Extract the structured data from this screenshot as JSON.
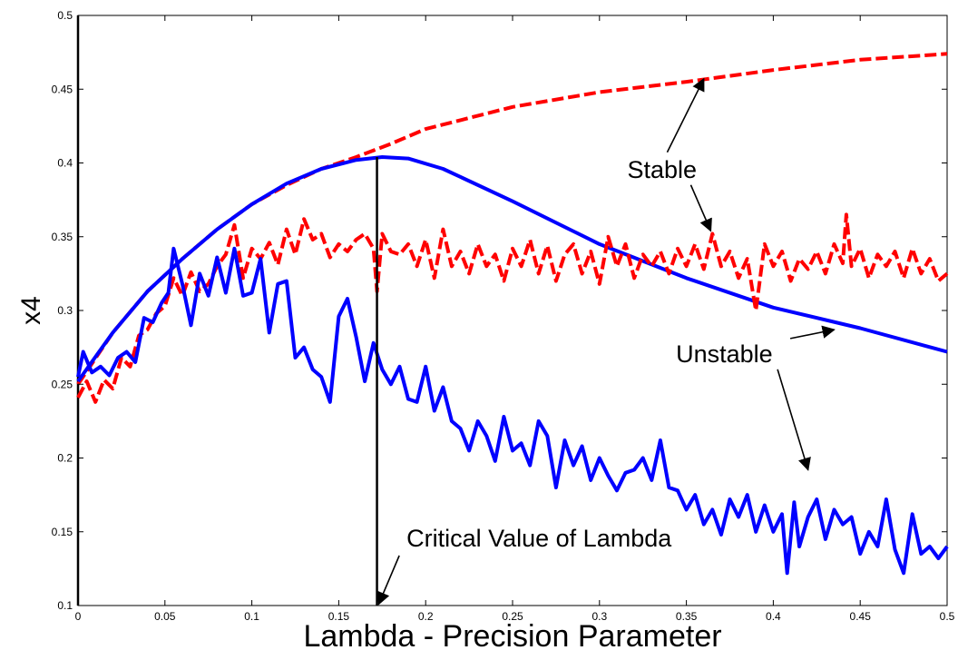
{
  "chart_data": {
    "type": "line",
    "title": "",
    "xlabel": "Lambda - Precision Parameter",
    "ylabel": "x4",
    "xlim": [
      0,
      0.5
    ],
    "ylim": [
      0.1,
      0.5
    ],
    "grid": false,
    "x_ticks": [
      0,
      0.05,
      0.1,
      0.15,
      0.2,
      0.25,
      0.3,
      0.35,
      0.4,
      0.45,
      0.5
    ],
    "x_tick_labels": [
      "0",
      "0.05",
      "0.1",
      "0.15",
      "0.2",
      "0.25",
      "0.3",
      "0.35",
      "0.4",
      "0.45",
      "0.5"
    ],
    "y_ticks": [
      0.1,
      0.15,
      0.2,
      0.25,
      0.3,
      0.35,
      0.4,
      0.45,
      0.5
    ],
    "y_tick_labels": [
      "0.1",
      "0.15",
      "0.2",
      "0.25",
      "0.3",
      "0.35",
      "0.4",
      "0.45",
      "0.5"
    ],
    "series": [
      {
        "color": "#ff0000",
        "style": "dashed",
        "points": [
          [
            0,
            0.25
          ],
          [
            0.02,
            0.285
          ],
          [
            0.04,
            0.313
          ],
          [
            0.06,
            0.335
          ],
          [
            0.08,
            0.355
          ],
          [
            0.1,
            0.372
          ],
          [
            0.12,
            0.385
          ],
          [
            0.14,
            0.396
          ],
          [
            0.16,
            0.404
          ],
          [
            0.18,
            0.413
          ],
          [
            0.2,
            0.423
          ],
          [
            0.25,
            0.438
          ],
          [
            0.3,
            0.448
          ],
          [
            0.35,
            0.455
          ],
          [
            0.4,
            0.463
          ],
          [
            0.45,
            0.47
          ],
          [
            0.5,
            0.474
          ]
        ]
      },
      {
        "color": "#0000ff",
        "style": "solid",
        "points": [
          [
            0,
            0.252
          ],
          [
            0.02,
            0.285
          ],
          [
            0.04,
            0.313
          ],
          [
            0.06,
            0.335
          ],
          [
            0.08,
            0.355
          ],
          [
            0.1,
            0.372
          ],
          [
            0.12,
            0.386
          ],
          [
            0.14,
            0.396
          ],
          [
            0.16,
            0.402
          ],
          [
            0.175,
            0.404
          ],
          [
            0.19,
            0.403
          ],
          [
            0.21,
            0.396
          ],
          [
            0.25,
            0.374
          ],
          [
            0.3,
            0.345
          ],
          [
            0.35,
            0.322
          ],
          [
            0.4,
            0.302
          ],
          [
            0.45,
            0.288
          ],
          [
            0.5,
            0.272
          ]
        ]
      },
      {
        "color": "#ff0000",
        "style": "dashed",
        "points": [
          [
            0,
            0.241
          ],
          [
            0.005,
            0.252
          ],
          [
            0.01,
            0.238
          ],
          [
            0.015,
            0.253
          ],
          [
            0.02,
            0.247
          ],
          [
            0.025,
            0.268
          ],
          [
            0.03,
            0.262
          ],
          [
            0.035,
            0.283
          ],
          [
            0.04,
            0.287
          ],
          [
            0.045,
            0.298
          ],
          [
            0.05,
            0.303
          ],
          [
            0.055,
            0.322
          ],
          [
            0.06,
            0.31
          ],
          [
            0.065,
            0.326
          ],
          [
            0.07,
            0.313
          ],
          [
            0.075,
            0.318
          ],
          [
            0.08,
            0.33
          ],
          [
            0.085,
            0.338
          ],
          [
            0.09,
            0.358
          ],
          [
            0.095,
            0.322
          ],
          [
            0.1,
            0.342
          ],
          [
            0.105,
            0.335
          ],
          [
            0.11,
            0.346
          ],
          [
            0.115,
            0.331
          ],
          [
            0.12,
            0.355
          ],
          [
            0.125,
            0.338
          ],
          [
            0.13,
            0.362
          ],
          [
            0.135,
            0.348
          ],
          [
            0.14,
            0.352
          ],
          [
            0.145,
            0.336
          ],
          [
            0.15,
            0.345
          ],
          [
            0.155,
            0.34
          ],
          [
            0.16,
            0.348
          ],
          [
            0.165,
            0.352
          ],
          [
            0.17,
            0.342
          ],
          [
            0.172,
            0.313
          ],
          [
            0.175,
            0.352
          ],
          [
            0.18,
            0.34
          ],
          [
            0.185,
            0.338
          ],
          [
            0.19,
            0.345
          ],
          [
            0.195,
            0.33
          ],
          [
            0.2,
            0.348
          ],
          [
            0.205,
            0.322
          ],
          [
            0.21,
            0.355
          ],
          [
            0.215,
            0.33
          ],
          [
            0.22,
            0.34
          ],
          [
            0.225,
            0.325
          ],
          [
            0.23,
            0.345
          ],
          [
            0.235,
            0.33
          ],
          [
            0.24,
            0.338
          ],
          [
            0.245,
            0.32
          ],
          [
            0.25,
            0.342
          ],
          [
            0.255,
            0.33
          ],
          [
            0.26,
            0.348
          ],
          [
            0.265,
            0.325
          ],
          [
            0.27,
            0.344
          ],
          [
            0.275,
            0.32
          ],
          [
            0.28,
            0.338
          ],
          [
            0.285,
            0.345
          ],
          [
            0.29,
            0.325
          ],
          [
            0.295,
            0.34
          ],
          [
            0.3,
            0.318
          ],
          [
            0.305,
            0.35
          ],
          [
            0.31,
            0.33
          ],
          [
            0.315,
            0.345
          ],
          [
            0.32,
            0.322
          ],
          [
            0.325,
            0.338
          ],
          [
            0.33,
            0.33
          ],
          [
            0.335,
            0.34
          ],
          [
            0.34,
            0.325
          ],
          [
            0.345,
            0.342
          ],
          [
            0.35,
            0.33
          ],
          [
            0.355,
            0.345
          ],
          [
            0.36,
            0.328
          ],
          [
            0.365,
            0.352
          ],
          [
            0.37,
            0.33
          ],
          [
            0.375,
            0.34
          ],
          [
            0.38,
            0.322
          ],
          [
            0.385,
            0.335
          ],
          [
            0.39,
            0.3
          ],
          [
            0.395,
            0.345
          ],
          [
            0.4,
            0.33
          ],
          [
            0.405,
            0.34
          ],
          [
            0.41,
            0.32
          ],
          [
            0.415,
            0.335
          ],
          [
            0.42,
            0.328
          ],
          [
            0.425,
            0.34
          ],
          [
            0.43,
            0.325
          ],
          [
            0.435,
            0.345
          ],
          [
            0.44,
            0.332
          ],
          [
            0.442,
            0.365
          ],
          [
            0.445,
            0.33
          ],
          [
            0.45,
            0.342
          ],
          [
            0.455,
            0.322
          ],
          [
            0.46,
            0.338
          ],
          [
            0.465,
            0.33
          ],
          [
            0.47,
            0.34
          ],
          [
            0.475,
            0.322
          ],
          [
            0.48,
            0.342
          ],
          [
            0.485,
            0.325
          ],
          [
            0.49,
            0.335
          ],
          [
            0.495,
            0.32
          ],
          [
            0.5,
            0.325
          ]
        ]
      },
      {
        "color": "#0000ff",
        "style": "solid",
        "points": [
          [
            0,
            0.255
          ],
          [
            0.003,
            0.272
          ],
          [
            0.008,
            0.258
          ],
          [
            0.013,
            0.262
          ],
          [
            0.018,
            0.256
          ],
          [
            0.023,
            0.268
          ],
          [
            0.028,
            0.272
          ],
          [
            0.033,
            0.265
          ],
          [
            0.038,
            0.295
          ],
          [
            0.043,
            0.292
          ],
          [
            0.048,
            0.305
          ],
          [
            0.052,
            0.312
          ],
          [
            0.055,
            0.342
          ],
          [
            0.06,
            0.318
          ],
          [
            0.065,
            0.29
          ],
          [
            0.07,
            0.325
          ],
          [
            0.075,
            0.31
          ],
          [
            0.08,
            0.336
          ],
          [
            0.085,
            0.312
          ],
          [
            0.09,
            0.342
          ],
          [
            0.095,
            0.31
          ],
          [
            0.1,
            0.312
          ],
          [
            0.105,
            0.335
          ],
          [
            0.11,
            0.285
          ],
          [
            0.115,
            0.318
          ],
          [
            0.12,
            0.32
          ],
          [
            0.125,
            0.268
          ],
          [
            0.13,
            0.275
          ],
          [
            0.135,
            0.26
          ],
          [
            0.14,
            0.255
          ],
          [
            0.145,
            0.238
          ],
          [
            0.15,
            0.296
          ],
          [
            0.155,
            0.308
          ],
          [
            0.16,
            0.282
          ],
          [
            0.165,
            0.252
          ],
          [
            0.17,
            0.278
          ],
          [
            0.175,
            0.26
          ],
          [
            0.18,
            0.25
          ],
          [
            0.185,
            0.262
          ],
          [
            0.19,
            0.24
          ],
          [
            0.195,
            0.238
          ],
          [
            0.2,
            0.262
          ],
          [
            0.205,
            0.232
          ],
          [
            0.21,
            0.248
          ],
          [
            0.215,
            0.225
          ],
          [
            0.22,
            0.22
          ],
          [
            0.225,
            0.205
          ],
          [
            0.23,
            0.225
          ],
          [
            0.235,
            0.215
          ],
          [
            0.24,
            0.198
          ],
          [
            0.245,
            0.228
          ],
          [
            0.25,
            0.205
          ],
          [
            0.255,
            0.21
          ],
          [
            0.26,
            0.195
          ],
          [
            0.265,
            0.225
          ],
          [
            0.27,
            0.215
          ],
          [
            0.275,
            0.18
          ],
          [
            0.28,
            0.212
          ],
          [
            0.285,
            0.195
          ],
          [
            0.29,
            0.208
          ],
          [
            0.295,
            0.185
          ],
          [
            0.3,
            0.2
          ],
          [
            0.305,
            0.188
          ],
          [
            0.31,
            0.178
          ],
          [
            0.315,
            0.19
          ],
          [
            0.32,
            0.192
          ],
          [
            0.325,
            0.2
          ],
          [
            0.33,
            0.185
          ],
          [
            0.335,
            0.212
          ],
          [
            0.34,
            0.18
          ],
          [
            0.345,
            0.178
          ],
          [
            0.35,
            0.165
          ],
          [
            0.355,
            0.175
          ],
          [
            0.36,
            0.155
          ],
          [
            0.365,
            0.165
          ],
          [
            0.37,
            0.148
          ],
          [
            0.375,
            0.172
          ],
          [
            0.38,
            0.16
          ],
          [
            0.385,
            0.175
          ],
          [
            0.39,
            0.15
          ],
          [
            0.395,
            0.168
          ],
          [
            0.4,
            0.15
          ],
          [
            0.405,
            0.162
          ],
          [
            0.408,
            0.122
          ],
          [
            0.412,
            0.17
          ],
          [
            0.415,
            0.14
          ],
          [
            0.42,
            0.16
          ],
          [
            0.425,
            0.172
          ],
          [
            0.43,
            0.145
          ],
          [
            0.435,
            0.165
          ],
          [
            0.44,
            0.155
          ],
          [
            0.445,
            0.16
          ],
          [
            0.45,
            0.135
          ],
          [
            0.455,
            0.15
          ],
          [
            0.46,
            0.14
          ],
          [
            0.465,
            0.172
          ],
          [
            0.47,
            0.138
          ],
          [
            0.475,
            0.122
          ],
          [
            0.48,
            0.162
          ],
          [
            0.485,
            0.135
          ],
          [
            0.49,
            0.14
          ],
          [
            0.495,
            0.132
          ],
          [
            0.5,
            0.14
          ]
        ]
      }
    ],
    "reference_line": {
      "x": 0.172,
      "color": "#000000"
    },
    "annotations": [
      {
        "text": "Stable",
        "text_at": [
          0.316,
          0.39
        ],
        "arrows_to": [
          [
            0.36,
            0.457
          ],
          [
            0.364,
            0.354
          ]
        ]
      },
      {
        "text": "Unstable",
        "text_at": [
          0.344,
          0.265
        ],
        "arrows_to": [
          [
            0.435,
            0.287
          ],
          [
            0.42,
            0.192
          ]
        ]
      },
      {
        "text": "Critical Value of Lambda",
        "text_at": [
          0.189,
          0.14
        ],
        "arrows_to": [
          [
            0.173,
            0.101
          ]
        ]
      }
    ]
  }
}
